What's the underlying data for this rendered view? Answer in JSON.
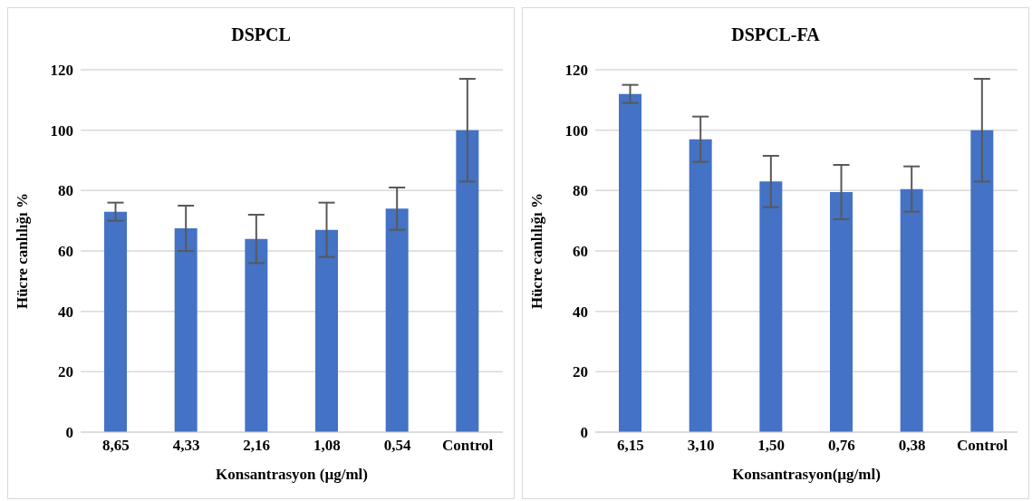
{
  "chart_data": [
    {
      "type": "bar",
      "title": "DSPCL",
      "xlabel": "Konsantrasyon (µg/ml)",
      "ylabel": "Hücre canlılığı %",
      "categories": [
        "8,65",
        "4,33",
        "2,16",
        "1,08",
        "0,54",
        "Control"
      ],
      "values": [
        73,
        67.5,
        64,
        67,
        74,
        100
      ],
      "errors": [
        3,
        7.5,
        8,
        9,
        7,
        17
      ],
      "color": "#4472c4",
      "ylim": [
        0,
        120
      ],
      "yticks": [
        0,
        20,
        40,
        60,
        80,
        100,
        120
      ],
      "grid": "y"
    },
    {
      "type": "bar",
      "title": "DSPCL-FA",
      "xlabel": "Konsantrasyon(µg/ml)",
      "ylabel": "Hücre canlılığı %",
      "categories": [
        "6,15",
        "3,10",
        "1,50",
        "0,76",
        "0,38",
        "Control"
      ],
      "values": [
        112,
        97,
        83,
        79.5,
        80.5,
        100
      ],
      "errors": [
        3,
        7.5,
        8.5,
        9,
        7.5,
        17
      ],
      "color": "#4472c4",
      "ylim": [
        0,
        120
      ],
      "yticks": [
        0,
        20,
        40,
        60,
        80,
        100,
        120
      ],
      "grid": "y"
    }
  ]
}
